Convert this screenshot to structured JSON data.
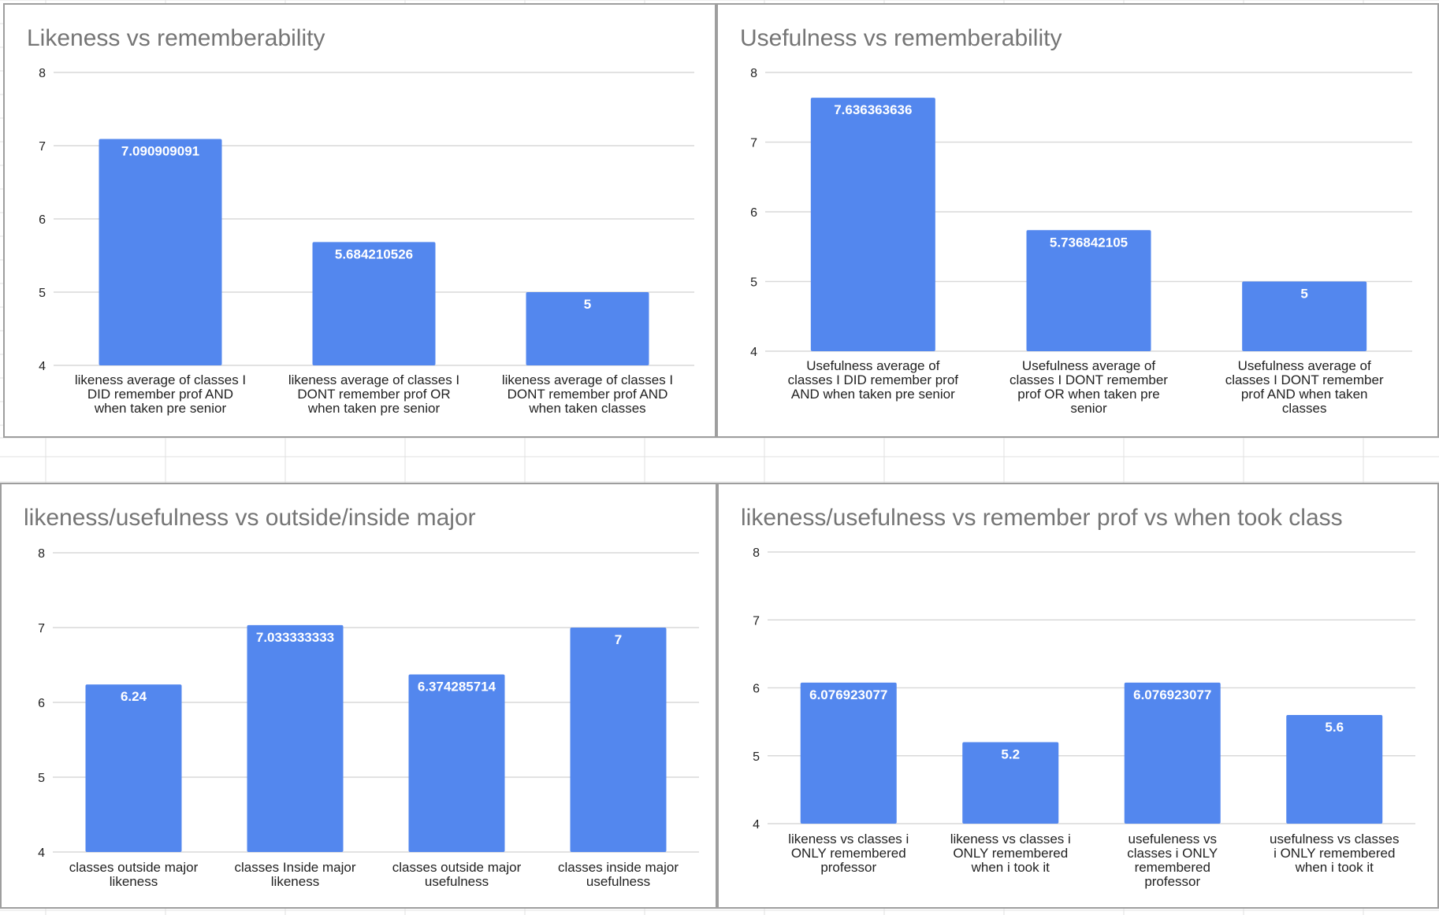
{
  "colors": {
    "bar": "#5387ee",
    "gridline": "#d9d9d9",
    "title": "#757575",
    "text": "#222222",
    "panel_border": "#9e9e9e",
    "sheet_grid": "#e0e0e0"
  },
  "chart_data": [
    {
      "type": "bar",
      "title": "Likeness vs rememberability",
      "categories": [
        [
          "likeness average of classes I",
          "DID remember prof AND",
          "when taken pre senior"
        ],
        [
          "likeness average of classes I",
          "DONT remember prof OR",
          "when taken pre senior"
        ],
        [
          "likeness average of classes I",
          "DONT remember prof AND",
          "when taken classes"
        ]
      ],
      "values": [
        7.090909091,
        5.684210526,
        5
      ],
      "value_labels": [
        "7.090909091",
        "5.684210526",
        "5"
      ],
      "ylim": [
        4,
        8
      ],
      "yticks": [
        4,
        5,
        6,
        7,
        8
      ],
      "grid": true,
      "legend": "none"
    },
    {
      "type": "bar",
      "title": "Usefulness vs rememberability",
      "categories": [
        [
          "Usefulness average of",
          "classes I DID remember prof",
          "AND when taken pre senior"
        ],
        [
          "Usefulness average of",
          "classes I DONT remember",
          "prof OR when taken pre",
          "senior"
        ],
        [
          "Usefulness average of",
          "classes I DONT remember",
          "prof AND when taken",
          "classes"
        ]
      ],
      "values": [
        7.636363636,
        5.736842105,
        5
      ],
      "value_labels": [
        "7.636363636",
        "5.736842105",
        "5"
      ],
      "ylim": [
        4,
        8
      ],
      "yticks": [
        4,
        5,
        6,
        7,
        8
      ],
      "grid": true,
      "legend": "none"
    },
    {
      "type": "bar",
      "title": "likeness/usefulness vs outside/inside major",
      "categories": [
        [
          "classes outside major",
          "likeness"
        ],
        [
          "classes Inside major",
          "likeness"
        ],
        [
          "classes outside major",
          "usefulness"
        ],
        [
          "classes inside major",
          "usefulness"
        ]
      ],
      "values": [
        6.24,
        7.033333333,
        6.374285714,
        7
      ],
      "value_labels": [
        "6.24",
        "7.033333333",
        "6.374285714",
        "7"
      ],
      "ylim": [
        4,
        8
      ],
      "yticks": [
        4,
        5,
        6,
        7,
        8
      ],
      "grid": true,
      "legend": "none"
    },
    {
      "type": "bar",
      "title": "likeness/usefulness vs remember prof vs when took class",
      "categories": [
        [
          "likeness vs classes i",
          "ONLY remembered",
          "professor"
        ],
        [
          "likeness vs classes i",
          "ONLY remembered",
          "when i took it"
        ],
        [
          "usefuleness vs",
          "classes i ONLY",
          "remembered",
          "professor"
        ],
        [
          "usefulness vs classes",
          "i ONLY remembered",
          "when i took it"
        ]
      ],
      "values": [
        6.076923077,
        5.2,
        6.076923077,
        5.6
      ],
      "value_labels": [
        "6.076923077",
        "5.2",
        "6.076923077",
        "5.6"
      ],
      "ylim": [
        4,
        8
      ],
      "yticks": [
        4,
        5,
        6,
        7,
        8
      ],
      "grid": true,
      "legend": "none"
    }
  ]
}
